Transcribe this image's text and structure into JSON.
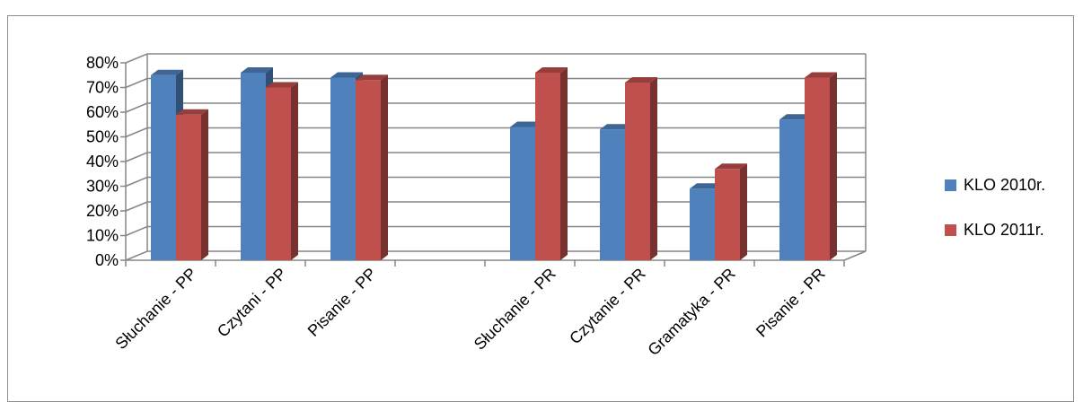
{
  "chart_data": {
    "type": "bar",
    "categories": [
      "Słuchanie - PP",
      "Czytani - PP",
      "Pisanie - PP",
      "",
      "Słuchanie - PR",
      "Czytanie - PR",
      "Gramatyka - PR",
      "Pisanie - PR"
    ],
    "series": [
      {
        "name": "KLO 2010r.",
        "values": [
          75,
          76,
          74,
          null,
          54,
          53,
          29,
          57
        ],
        "color": "#4f81bd"
      },
      {
        "name": "KLO 2011r.",
        "values": [
          59,
          70,
          73,
          null,
          76,
          72,
          37,
          74
        ],
        "color": "#c0504d"
      }
    ],
    "ylim": [
      0,
      80
    ],
    "yticks": [
      "0%",
      "10%",
      "20%",
      "30%",
      "40%",
      "50%",
      "60%",
      "70%",
      "80%"
    ],
    "grid": true,
    "legend": "right",
    "style": "3d-clustered-column"
  }
}
